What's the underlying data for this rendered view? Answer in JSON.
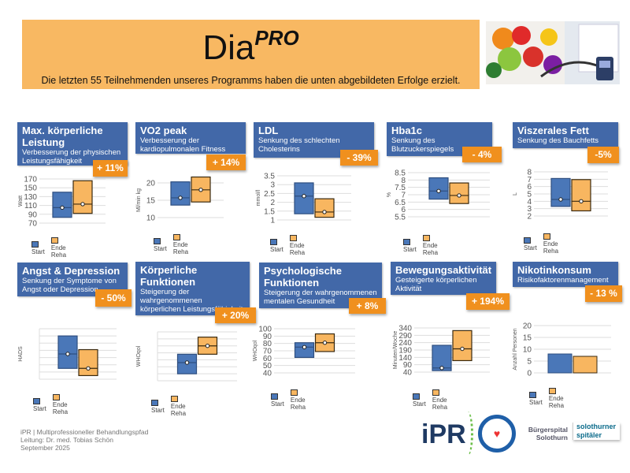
{
  "banner": {
    "title": "Dia",
    "title_sup": "PRO",
    "subtitle": "Die letzten 55 Teilnehmenden unseres Programms haben die unten abgebildeten Erfolge erzielt."
  },
  "colors": {
    "header": "#4268a8",
    "badge": "#f0901e",
    "start": "#4a77b8",
    "ende": "#f8b660",
    "banner": "#f8b862"
  },
  "legend": {
    "start": "Start",
    "ende": "Ende Reha"
  },
  "chart_data": [
    {
      "type": "box",
      "title": "Max. körperliche Leistung",
      "subtitle": "Verbesserung der physischen Leistungsfähigkeit",
      "badge": "+ 11%",
      "ylabel": "Watt",
      "ticks": [
        "70",
        "90",
        "110",
        "130",
        "150",
        "170"
      ],
      "ylim": [
        70,
        170
      ],
      "series": [
        {
          "name": "Start",
          "low": 83,
          "high": 140,
          "median": 105
        },
        {
          "name": "Ende Reha",
          "low": 92,
          "high": 166,
          "median": 113
        }
      ]
    },
    {
      "type": "box",
      "title": "VO2 peak",
      "subtitle": "Verbesserung der kardiopulmonalen Fitness",
      "badge": "+ 14%",
      "ylabel": "Ml/min kg",
      "ticks": [
        "10",
        "15",
        "20"
      ],
      "ylim": [
        10,
        20
      ],
      "series": [
        {
          "name": "Start",
          "low": 13.6,
          "high": 20.3,
          "median": 15.7
        },
        {
          "name": "Ende Reha",
          "low": 14.5,
          "high": 21.7,
          "median": 18
        }
      ]
    },
    {
      "type": "box",
      "title": "LDL",
      "subtitle": "Senkung des schlechten Cholesterins",
      "badge": "- 39%",
      "ylabel": "mmol/l",
      "ticks": [
        "1",
        "1.5",
        "2",
        "2.5",
        "3",
        "3.5"
      ],
      "ylim": [
        1,
        3.5
      ],
      "series": [
        {
          "name": "Start",
          "low": 1.35,
          "high": 3.1,
          "median": 2.35
        },
        {
          "name": "Ende Reha",
          "low": 1.15,
          "high": 2.2,
          "median": 1.45
        }
      ]
    },
    {
      "type": "box",
      "title": "Hba1c",
      "subtitle": "Senkung des Blutzuckerspiegels",
      "badge": "- 4%",
      "ylabel": "%",
      "ticks": [
        "5.5",
        "6",
        "6.5",
        "7",
        "7.5",
        "8",
        "8.5"
      ],
      "ylim": [
        5.5,
        8.5
      ],
      "series": [
        {
          "name": "Start",
          "low": 6.7,
          "high": 8.15,
          "median": 7.25
        },
        {
          "name": "Ende Reha",
          "low": 6.4,
          "high": 7.8,
          "median": 6.95
        }
      ]
    },
    {
      "type": "box",
      "title": "Viszerales Fett",
      "subtitle": "Senkung des Bauchfetts",
      "badge": "-5%",
      "ylabel": "L",
      "ticks": [
        "2",
        "3",
        "4",
        "5",
        "6",
        "7",
        "8"
      ],
      "ylim": [
        2,
        8
      ],
      "series": [
        {
          "name": "Start",
          "low": 3.3,
          "high": 7.1,
          "median": 4.25
        },
        {
          "name": "Ende Reha",
          "low": 2.7,
          "high": 6.95,
          "median": 4.0
        }
      ]
    },
    {
      "type": "box",
      "title": "Angst & Depression",
      "subtitle": "Senkung der Symptome von Angst oder Depression",
      "badge": "- 50%",
      "ylabel": "HADS",
      "ticks": [],
      "ylim": [
        0,
        7
      ],
      "series": [
        {
          "name": "Start",
          "low": 1.5,
          "high": 6.0,
          "median": 3.5
        },
        {
          "name": "Ende Reha",
          "low": 0.5,
          "high": 4.1,
          "median": 1.5
        }
      ]
    },
    {
      "type": "box",
      "title": "Körperliche Funktionen",
      "subtitle": "Steigerung der wahrgenommenen körperlichen Leistungsfähigkeit",
      "badge": "+ 20%",
      "ylabel": "WHOqol",
      "ticks": [],
      "ylim": [
        0,
        7
      ],
      "series": [
        {
          "name": "Start",
          "low": 1.0,
          "high": 3.8,
          "median": 2.6
        },
        {
          "name": "Ende Reha",
          "low": 3.8,
          "high": 6.25,
          "median": 5.0
        }
      ]
    },
    {
      "type": "box",
      "title": "Psychologische Funktionen",
      "subtitle": "Steigerung der wahrgenommenen mentalen Gesundheit",
      "badge": "+ 8%",
      "ylabel": "WHOqol",
      "ticks": [
        "40",
        "50",
        "60",
        "70",
        "80",
        "90",
        "100"
      ],
      "ylim": [
        40,
        100
      ],
      "series": [
        {
          "name": "Start",
          "low": 61,
          "high": 81,
          "median": 75
        },
        {
          "name": "Ende Reha",
          "low": 69,
          "high": 93,
          "median": 81
        }
      ]
    },
    {
      "type": "box",
      "title": "Bewegungsaktivität",
      "subtitle": "Gesteigerte körperlichen Aktivität",
      "badge": "+ 194%",
      "ylabel": "Minuten/Woche",
      "ticks": [
        "40",
        "90",
        "140",
        "190",
        "240",
        "290",
        "340"
      ],
      "ylim": [
        40,
        340
      ],
      "series": [
        {
          "name": "Start",
          "low": 50,
          "high": 222,
          "median": 68
        },
        {
          "name": "Ende Reha",
          "low": 118,
          "high": 322,
          "median": 198
        }
      ]
    },
    {
      "type": "bar",
      "title": "Nikotinkonsum",
      "subtitle": "Risikofaktorenmanagement",
      "badge": "- 13 %",
      "ylabel": "Anzahl Personen",
      "ticks": [
        "0",
        "5",
        "10",
        "15",
        "20"
      ],
      "ylim": [
        0,
        20
      ],
      "series": [
        {
          "name": "Start",
          "value": 8
        },
        {
          "name": "Ende Reha",
          "value": 7
        }
      ]
    }
  ],
  "footer": {
    "line1": "iPR  |  Multiprofessioneller Behandlungspfad",
    "line2": "Leitung: Dr. med. Tobias Schön",
    "line3": "September 2025"
  },
  "logos": {
    "ipr": "iPR",
    "seal": "Kardiovaskuläre Rehabilitation",
    "spital": "Bürgerspital Solothurn",
    "spital_group": "solothurner spitäler"
  }
}
